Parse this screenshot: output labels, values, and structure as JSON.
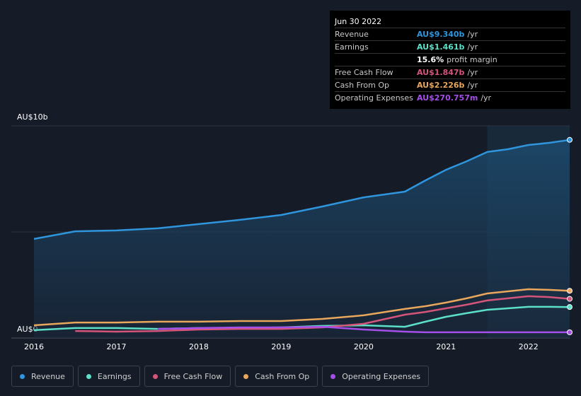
{
  "chart_data": {
    "type": "line",
    "x": [
      2016,
      2016.5,
      2017,
      2017.5,
      2018,
      2018.5,
      2019,
      2019.5,
      2020,
      2020.5,
      2020.75,
      2021,
      2021.25,
      2021.5,
      2021.75,
      2022,
      2022.25,
      2022.5
    ],
    "series": [
      {
        "name": "Revenue",
        "color": "#2f95dc",
        "values": [
          4.67,
          5.03,
          5.07,
          5.17,
          5.37,
          5.57,
          5.8,
          6.2,
          6.63,
          6.9,
          7.43,
          7.93,
          8.33,
          8.77,
          8.9,
          9.1,
          9.2,
          9.34
        ]
      },
      {
        "name": "Earnings",
        "color": "#5de0c8",
        "values": [
          0.37,
          0.47,
          0.47,
          0.43,
          0.47,
          0.47,
          0.5,
          0.57,
          0.6,
          0.53,
          0.77,
          1.0,
          1.17,
          1.33,
          1.4,
          1.47,
          1.47,
          1.461
        ]
      },
      {
        "name": "Free Cash Flow",
        "color": "#d4547a",
        "values": [
          null,
          0.33,
          0.3,
          0.33,
          0.4,
          0.43,
          0.43,
          0.5,
          0.67,
          1.1,
          1.23,
          1.4,
          1.57,
          1.77,
          1.87,
          1.97,
          1.93,
          1.847
        ]
      },
      {
        "name": "Cash From Op",
        "color": "#e8a75c",
        "values": [
          0.6,
          0.73,
          0.73,
          0.77,
          0.77,
          0.8,
          0.8,
          0.9,
          1.07,
          1.37,
          1.5,
          1.67,
          1.87,
          2.1,
          2.2,
          2.3,
          2.27,
          2.226
        ]
      },
      {
        "name": "Operating Expenses",
        "color": "#a54ee8",
        "values": [
          null,
          null,
          null,
          0.43,
          0.47,
          0.5,
          0.5,
          0.53,
          0.4,
          0.3,
          0.27,
          0.27,
          0.27,
          0.27,
          0.27,
          0.27,
          0.27,
          0.270757
        ]
      }
    ],
    "xlim": [
      2015.725,
      2022.5
    ],
    "xticks": [
      2016,
      2017,
      2018,
      2019,
      2020,
      2021,
      2022
    ],
    "ylim": [
      0,
      10
    ],
    "yticks": [
      {
        "value": 0,
        "label": "AU$0"
      },
      {
        "value": 5,
        "label": null
      },
      {
        "value": 10,
        "label": "AU$10b"
      }
    ],
    "grid": true,
    "highlight_from": 2021.5,
    "tooltip": {
      "date": "Jun 30 2022",
      "rows": [
        {
          "label": "Revenue",
          "value": "AU$9.340b",
          "unit": "/yr"
        },
        {
          "label": "Earnings",
          "value": "AU$1.461b",
          "unit": "/yr"
        },
        {
          "value": "15.6%",
          "unit": "profit margin"
        },
        {
          "label": "Free Cash Flow",
          "value": "AU$1.847b",
          "unit": "/yr"
        },
        {
          "label": "Cash From Op",
          "value": "AU$2.226b",
          "unit": "/yr"
        },
        {
          "label": "Operating Expenses",
          "value": "AU$270.757m",
          "unit": "/yr"
        }
      ]
    }
  }
}
